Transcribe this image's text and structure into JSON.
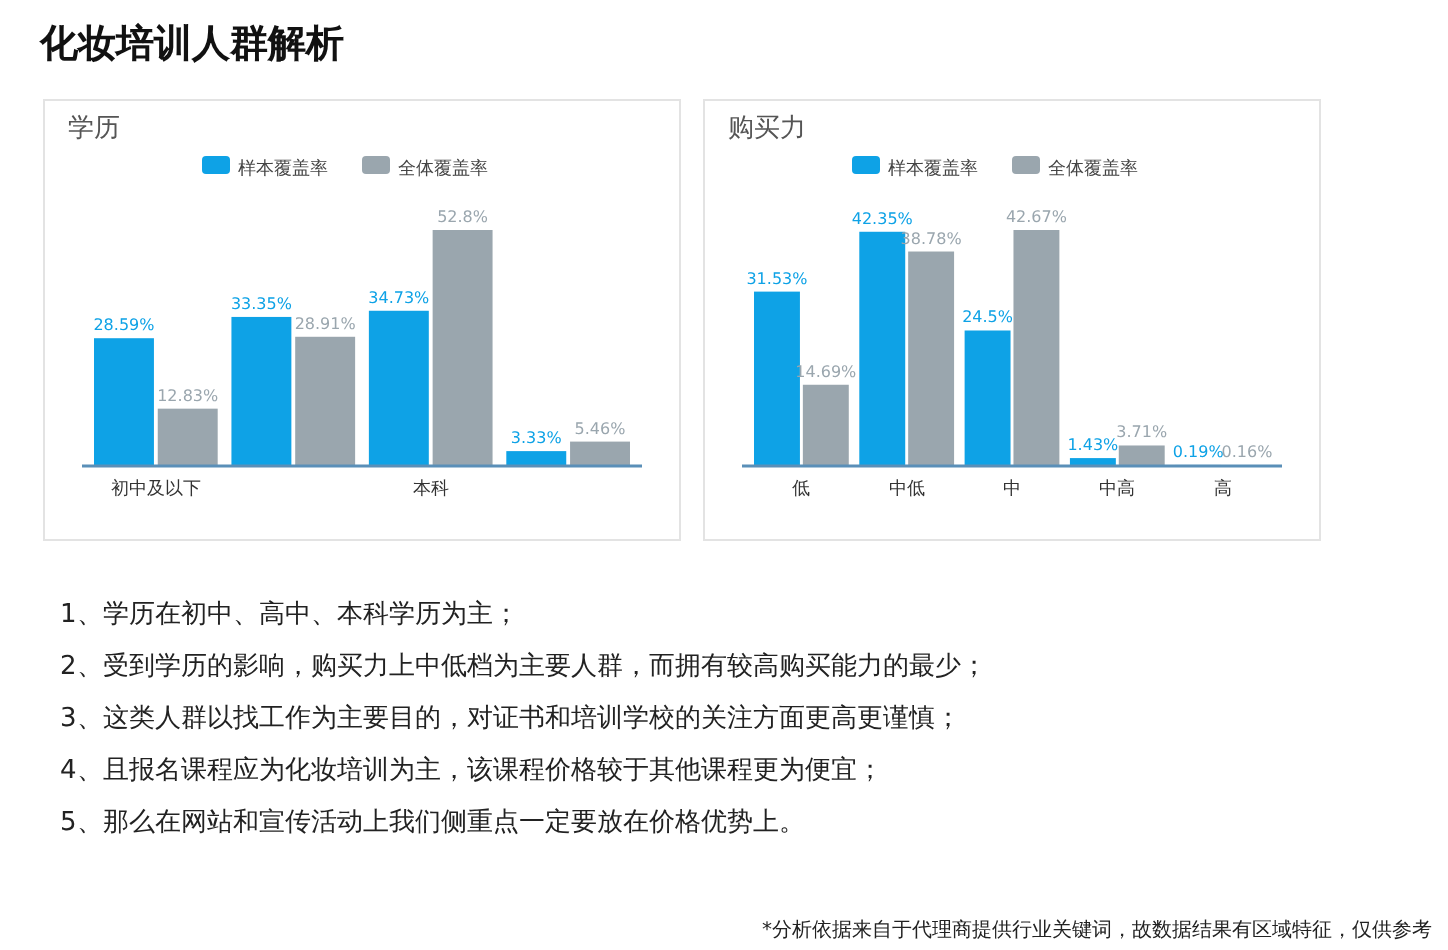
{
  "chart_data": [
    {
      "type": "other",
      "title": "化妆培训人群解析"
    },
    {
      "type": "bar",
      "title": "学历",
      "categories": [
        "初中及以下",
        null,
        "本科",
        null
      ],
      "series": [
        {
          "name": "样本覆盖率",
          "color": "#0ea2e6",
          "values": [
            28.59,
            33.35,
            34.73,
            3.33
          ],
          "value_labels": [
            "28.59%",
            "33.35%",
            "34.73%",
            "3.33%"
          ]
        },
        {
          "name": "全体覆盖率",
          "color": "#9aa6ae",
          "values": [
            12.83,
            28.91,
            52.8,
            5.46
          ],
          "value_labels": [
            "12.83%",
            "28.91%",
            "52.8%",
            "5.46%"
          ]
        }
      ],
      "legend": "top"
    },
    {
      "type": "bar",
      "title": "购买力",
      "categories": [
        "低",
        "中低",
        "中",
        "中高",
        "高"
      ],
      "series": [
        {
          "name": "样本覆盖率",
          "color": "#0ea2e6",
          "values": [
            31.53,
            42.35,
            24.5,
            1.43,
            0.19
          ],
          "value_labels": [
            "31.53%",
            "42.35%",
            "24.5%",
            "1.43%",
            "0.19%"
          ]
        },
        {
          "name": "全体覆盖率",
          "color": "#9aa6ae",
          "values": [
            14.69,
            38.78,
            42.67,
            3.71,
            0.16
          ],
          "value_labels": [
            "14.69%",
            "38.78%",
            "42.67%",
            "3.71%",
            "0.16%"
          ]
        }
      ],
      "legend": "top"
    },
    {
      "type": "other",
      "annotations": [
        "1、学历在初中、高中、本科学历为主；",
        "2、受到学历的影响，购买力上中低档为主要人群，而拥有较高购买能力的最少；",
        "3、这类人群以找工作为主要目的，对证书和培训学校的关注方面更高更谨慎；",
        "4、且报名课程应为化妆培训为主，该课程价格较于其他课程更为便宜；",
        "5、那么在网站和宣传活动上我们侧重点一定要放在价格优势上。",
        "*分析依据来自于代理商提供行业关键词，故数据结果有区域特征，仅供参考"
      ]
    }
  ]
}
